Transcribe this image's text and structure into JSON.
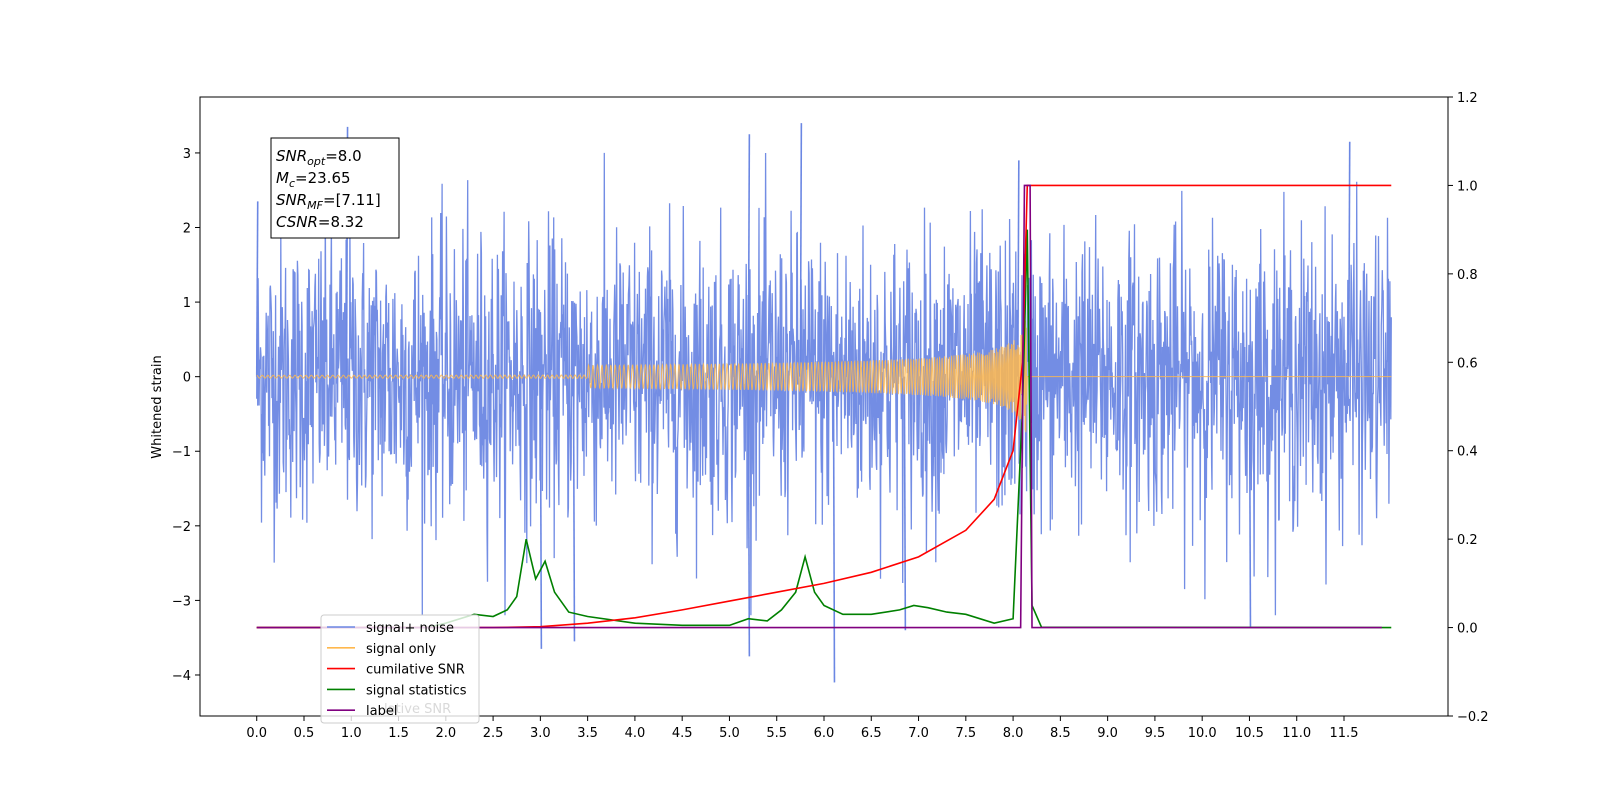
{
  "chart_data": {
    "type": "line",
    "ylabel": "Whitened strain",
    "xlim": [
      -0.6,
      12.6
    ],
    "ylim_left": [
      -4.55,
      3.75
    ],
    "ylim_right": [
      -0.2,
      1.2
    ],
    "x_ticks": [
      0.0,
      0.5,
      1.0,
      1.5,
      2.0,
      2.5,
      3.0,
      3.5,
      4.0,
      4.5,
      5.0,
      5.5,
      6.0,
      6.5,
      7.0,
      7.5,
      8.0,
      8.5,
      9.0,
      9.5,
      10.0,
      10.5,
      11.0,
      11.5
    ],
    "x_tick_labels": [
      "0.0",
      "0.5",
      "1.0",
      "1.5",
      "2.0",
      "2.5",
      "3.0",
      "3.5",
      "4.0",
      "4.5",
      "5.0",
      "5.5",
      "6.0",
      "6.5",
      "7.0",
      "7.5",
      "8.0",
      "8.5",
      "9.0",
      "9.5",
      "10.0",
      "10.5",
      "11.0",
      "11.5"
    ],
    "y_left_ticks": [
      3,
      2,
      1,
      0,
      -1,
      -2,
      -3,
      -4
    ],
    "y_left_tick_labels": [
      "3",
      "2",
      "1",
      "0",
      "−1",
      "−2",
      "−3",
      "−4"
    ],
    "y_right_ticks": [
      1.2,
      1.0,
      0.8,
      0.6,
      0.4,
      0.2,
      0.0,
      -0.2
    ],
    "y_right_tick_labels": [
      "1.2",
      "1.0",
      "0.8",
      "0.6",
      "0.4",
      "0.2",
      "0.0",
      "−0.2"
    ],
    "series": [
      {
        "name": "signal+ noise",
        "axis": "left",
        "color": "#6b87e3",
        "description_values": "whitened noise with signal, x from 0.0 to 12.0, amplitude roughly ±2.4 with spikes up to 3.4 and down to −4.1",
        "spikes": [
          [
            0.0,
            2.35
          ],
          [
            0.95,
            3.35
          ],
          [
            3.0,
            -3.65
          ],
          [
            3.35,
            -3.55
          ],
          [
            5.2,
            3.25
          ],
          [
            5.2,
            -3.75
          ],
          [
            5.75,
            3.4
          ],
          [
            6.1,
            -4.1
          ],
          [
            6.85,
            -3.4
          ],
          [
            10.5,
            -3.35
          ],
          [
            11.55,
            3.15
          ],
          [
            8.05,
            2.9
          ]
        ]
      },
      {
        "name": "signal only",
        "axis": "left",
        "color": "#ffb84d",
        "description_values": "chirp starting near 0 amplitude, growing to about ±0.9 at x≈8.15, then 0"
      },
      {
        "name": "cumilative SNR",
        "axis": "right",
        "color": "#ff0000",
        "points": [
          [
            0.0,
            0.0
          ],
          [
            2.5,
            0.0
          ],
          [
            3.0,
            0.002
          ],
          [
            3.5,
            0.01
          ],
          [
            4.0,
            0.022
          ],
          [
            4.5,
            0.04
          ],
          [
            5.0,
            0.06
          ],
          [
            5.5,
            0.08
          ],
          [
            6.0,
            0.1
          ],
          [
            6.5,
            0.125
          ],
          [
            7.0,
            0.16
          ],
          [
            7.5,
            0.22
          ],
          [
            7.8,
            0.29
          ],
          [
            8.0,
            0.4
          ],
          [
            8.1,
            0.6
          ],
          [
            8.15,
            1.0
          ],
          [
            12.0,
            1.0
          ]
        ]
      },
      {
        "name": "signal statistics",
        "axis": "right",
        "color": "#008000",
        "points": [
          [
            0.0,
            0.0
          ],
          [
            1.8,
            0.0
          ],
          [
            2.0,
            0.01
          ],
          [
            2.3,
            0.03
          ],
          [
            2.5,
            0.025
          ],
          [
            2.65,
            0.04
          ],
          [
            2.75,
            0.07
          ],
          [
            2.85,
            0.2
          ],
          [
            2.95,
            0.11
          ],
          [
            3.05,
            0.15
          ],
          [
            3.15,
            0.08
          ],
          [
            3.3,
            0.035
          ],
          [
            3.5,
            0.025
          ],
          [
            4.0,
            0.01
          ],
          [
            4.5,
            0.005
          ],
          [
            5.0,
            0.005
          ],
          [
            5.2,
            0.02
          ],
          [
            5.4,
            0.015
          ],
          [
            5.55,
            0.04
          ],
          [
            5.7,
            0.08
          ],
          [
            5.8,
            0.16
          ],
          [
            5.9,
            0.08
          ],
          [
            6.0,
            0.05
          ],
          [
            6.2,
            0.03
          ],
          [
            6.5,
            0.03
          ],
          [
            6.8,
            0.04
          ],
          [
            6.95,
            0.05
          ],
          [
            7.1,
            0.045
          ],
          [
            7.3,
            0.035
          ],
          [
            7.5,
            0.03
          ],
          [
            7.8,
            0.01
          ],
          [
            8.0,
            0.02
          ],
          [
            8.1,
            0.5
          ],
          [
            8.15,
            0.9
          ],
          [
            8.2,
            0.05
          ],
          [
            8.3,
            0.001
          ],
          [
            12.0,
            0.0
          ]
        ]
      },
      {
        "name": "label",
        "axis": "right",
        "color": "#800080",
        "points": [
          [
            0.0,
            0.0
          ],
          [
            8.08,
            0.0
          ],
          [
            8.12,
            1.0
          ],
          [
            8.18,
            1.0
          ],
          [
            8.2,
            0.0
          ],
          [
            11.9,
            0.0
          ]
        ]
      }
    ],
    "legend_placement": "bottom-left",
    "annotation": {
      "lines": [
        {
          "base": "SNR",
          "sub": "opt",
          "rest": "=8.0"
        },
        {
          "base": "M",
          "sub": "c",
          "rest": "=23.65"
        },
        {
          "base": "SNR",
          "sub": "MF",
          "rest": "=[7.11]"
        },
        {
          "base": "CSNR",
          "sub": "",
          "rest": "=8.32"
        }
      ]
    },
    "legend_overlap_text": "lative SNR"
  }
}
